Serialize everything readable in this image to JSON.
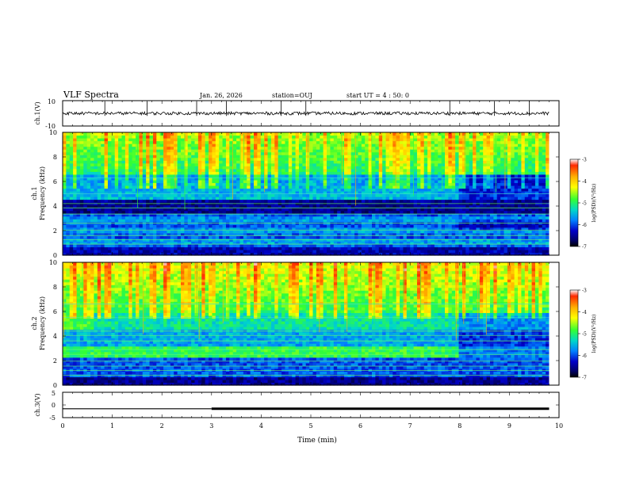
{
  "header": {
    "title": "VLF Spectra",
    "date": "Jan. 26, 2026",
    "station": "station=OUJ",
    "start": "start  UT =   4 : 50: 0"
  },
  "colorbar": {
    "label": "log(PSD)(V²/Hz)",
    "ticks": [
      "-3",
      "-4",
      "-5",
      "-6",
      "-7"
    ],
    "colors": [
      "#ffffff",
      "#ff2a00",
      "#ffb000",
      "#ffff00",
      "#33ff33",
      "#00d8c8",
      "#0080ff",
      "#0000c8",
      "#000066",
      "#000000"
    ]
  },
  "chart_data": [
    {
      "type": "line",
      "panel": "ch1-waveform",
      "ylabel": "ch.1(V)",
      "ylim": [
        -10,
        10
      ],
      "yticks": [
        "10",
        "-10"
      ],
      "xlim": [
        0,
        10
      ],
      "description_values": {
        "baseline": 0,
        "spikes_t": [
          0.85,
          1.7,
          2.7,
          3.3,
          4.4,
          4.9,
          7.8,
          8.7,
          9.4
        ]
      }
    },
    {
      "type": "heatmap",
      "panel": "ch1-spectrogram",
      "ylabel_lines": [
        "ch.1",
        "Frequency (kHz)"
      ],
      "ylim": [
        0,
        10
      ],
      "yticks": [
        "0",
        "2",
        "4",
        "6",
        "8",
        "10"
      ],
      "xlim": [
        0,
        10
      ],
      "clim": [
        -7,
        -3
      ],
      "regime_change_min": 8.0
    },
    {
      "type": "heatmap",
      "panel": "ch2-spectrogram",
      "ylabel_lines": [
        "ch.2",
        "Frequency (kHz)"
      ],
      "ylim": [
        0,
        10
      ],
      "yticks": [
        "0",
        "2",
        "4",
        "6",
        "8",
        "10"
      ],
      "xlim": [
        0,
        10
      ],
      "clim": [
        -7,
        -3
      ],
      "regime_change_min": 8.0
    },
    {
      "type": "line",
      "panel": "ch3-waveform",
      "ylabel": "ch.3(V)",
      "ylim": [
        -5,
        5
      ],
      "yticks": [
        "5",
        "0",
        "-5"
      ],
      "xlim": [
        0,
        10
      ],
      "xlabel": "Time (min)",
      "xticks": [
        "0",
        "1",
        "2",
        "3",
        "4",
        "5",
        "6",
        "7",
        "8",
        "9",
        "10"
      ],
      "x": [
        0,
        3,
        3,
        9.8
      ],
      "y": [
        -1.5,
        -1.5,
        -1.5,
        -1.5
      ],
      "data_end_min": 9.8
    }
  ]
}
